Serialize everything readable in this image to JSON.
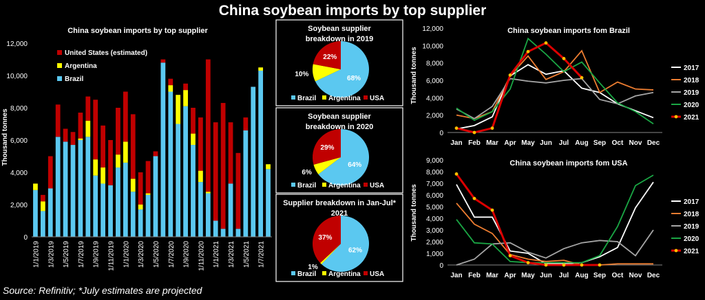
{
  "title": "China soybean imports by top supplier",
  "source": "Source: Refinitiv; *July estimates are projected",
  "colors": {
    "brazil": "#5bc8f0",
    "argentina": "#ffff00",
    "usa": "#c00000",
    "panel": "#ffffff"
  },
  "chart_data": [
    {
      "type": "bar",
      "stacked": true,
      "title": "China soybean imports by top supplier",
      "ylabel": "Thousand tonnes",
      "ylim": [
        0,
        12000
      ],
      "yticks": [
        0,
        2000,
        4000,
        6000,
        8000,
        10000,
        12000
      ],
      "ytick_labels": [
        "0",
        "2,000",
        "4,000",
        "6,000",
        "8,000",
        "10,000",
        "12,000"
      ],
      "xtick_labels": [
        "1/1/2019",
        "1/3/2019",
        "1/5/2019",
        "1/7/2019",
        "1/9/2019",
        "1/11/2019",
        "1/1/2020",
        "1/3/2020",
        "1/5/2020",
        "1/7/2020",
        "1/9/2020",
        "1/11/2020",
        "1/1/2021",
        "1/3/2021",
        "1/5/2021",
        "1/7/2021"
      ],
      "legend": [
        "United States (estimated)",
        "Argentina",
        "Brazil"
      ],
      "legend_position": "top-left",
      "series": [
        {
          "name": "Brazil",
          "color": "#5bc8f0",
          "values": [
            2900,
            1600,
            3000,
            6200,
            5900,
            5700,
            6000,
            6200,
            3800,
            3300,
            3200,
            4300,
            4600,
            2800,
            1700,
            2600,
            5000,
            10800,
            9000,
            7000,
            8100,
            5700,
            3400,
            2700,
            1000,
            500,
            3300,
            500,
            6600,
            9300,
            10300,
            4200
          ]
        },
        {
          "name": "Argentina",
          "color": "#ffff00",
          "values": [
            400,
            600,
            0,
            0,
            0,
            0,
            100,
            1000,
            1000,
            1000,
            0,
            800,
            1300,
            800,
            300,
            100,
            0,
            0,
            400,
            1800,
            1000,
            700,
            700,
            100,
            0,
            0,
            0,
            0,
            0,
            0,
            200,
            300
          ]
        },
        {
          "name": "United States (estimated)",
          "color": "#c00000",
          "values": [
            0,
            400,
            2000,
            2000,
            800,
            800,
            1600,
            1500,
            3700,
            2600,
            2800,
            2900,
            3100,
            4000,
            2000,
            2000,
            300,
            200,
            400,
            0,
            400,
            1600,
            3300,
            8200,
            6100,
            7800,
            3800,
            4700,
            800,
            0,
            0,
            0
          ]
        }
      ]
    },
    {
      "type": "pie",
      "title": "Soybean supplier breakdown in 2019",
      "labels": [
        "Brazil",
        "Argentina",
        "USA"
      ],
      "values": [
        68,
        10,
        22
      ],
      "value_labels": [
        "68%",
        "10%",
        "22%"
      ],
      "legend": [
        "Brazil",
        "Argentina",
        "USA"
      ]
    },
    {
      "type": "pie",
      "title": "Soybean supplier breakdown in 2020",
      "labels": [
        "Brazil",
        "Argentina",
        "USA"
      ],
      "values": [
        64,
        6,
        29
      ],
      "value_labels": [
        "64%",
        "6%",
        "29%"
      ],
      "legend": [
        "Brazil",
        "Argentina",
        "USA"
      ]
    },
    {
      "type": "pie",
      "title": "Supplier breakdown in Jan-Jul* 2021",
      "labels": [
        "Brazil",
        "Argentina",
        "USA"
      ],
      "values": [
        62,
        1,
        37
      ],
      "value_labels": [
        "62%",
        "1%",
        "37%"
      ],
      "legend": [
        "Brazil",
        "Argentina",
        "USA"
      ]
    },
    {
      "type": "line",
      "title": "China soybean imports fom Brazil",
      "ylabel": "Thousand tonnes",
      "ylim": [
        0,
        12000
      ],
      "yticks": [
        0,
        2000,
        4000,
        6000,
        8000,
        10000,
        12000
      ],
      "ytick_labels": [
        "0",
        "2,000",
        "4,000",
        "6,000",
        "8,000",
        "10,000",
        "12,000"
      ],
      "categories": [
        "Jan",
        "Feb",
        "Mar",
        "Apr",
        "May",
        "Jun",
        "Jul",
        "Aug",
        "Sep",
        "Oct",
        "Nov",
        "Dec"
      ],
      "series": [
        {
          "name": "2017",
          "color": "#ffffff",
          "values": [
            400,
            800,
            1800,
            6500,
            7800,
            6700,
            7100,
            5100,
            4600,
            3300,
            2500,
            1700
          ]
        },
        {
          "name": "2018",
          "color": "#ed7d31",
          "values": [
            2000,
            1600,
            2400,
            6500,
            8800,
            6100,
            7000,
            9400,
            4600,
            5800,
            5000,
            4900
          ]
        },
        {
          "name": "2019",
          "color": "#a6a6a6",
          "values": [
            2700,
            1600,
            3000,
            6200,
            5900,
            5700,
            6000,
            6200,
            3800,
            3300,
            4200,
            4600
          ]
        },
        {
          "name": "2020",
          "color": "#1aa644",
          "values": [
            2800,
            1400,
            2400,
            5000,
            10800,
            9000,
            7000,
            8100,
            5700,
            3400,
            2400,
            1000
          ]
        },
        {
          "name": "2021",
          "color": "#dc0000",
          "marker_color": "#ffc000",
          "values": [
            500,
            0,
            500,
            6600,
            9300,
            10300,
            8500,
            6300,
            null,
            null,
            null,
            null
          ]
        }
      ]
    },
    {
      "type": "line",
      "title": "China soybean imports fom USA",
      "ylabel": "Thousand tonnes",
      "ylim": [
        0,
        9000
      ],
      "yticks": [
        0,
        1000,
        2000,
        3000,
        4000,
        5000,
        6000,
        7000,
        8000,
        9000
      ],
      "ytick_labels": [
        "0",
        "1,000",
        "2,000",
        "3,000",
        "4,000",
        "5,000",
        "6,000",
        "7,000",
        "8,000",
        "9,000"
      ],
      "categories": [
        "Jan",
        "Feb",
        "Mar",
        "Apr",
        "May",
        "Jun",
        "Jul",
        "Aug",
        "Sep",
        "Oct",
        "Nov",
        "Dec"
      ],
      "series": [
        {
          "name": "2017",
          "color": "#ffffff",
          "values": [
            6900,
            4100,
            4100,
            1200,
            1000,
            100,
            100,
            200,
            700,
            1500,
            4900,
            7100
          ]
        },
        {
          "name": "2018",
          "color": "#ed7d31",
          "values": [
            5300,
            3500,
            2700,
            900,
            500,
            300,
            400,
            0,
            0,
            100,
            100,
            100
          ]
        },
        {
          "name": "2019",
          "color": "#a6a6a6",
          "values": [
            0,
            500,
            1800,
            1900,
            1100,
            600,
            1400,
            1900,
            2100,
            2000,
            800,
            3000
          ]
        },
        {
          "name": "2020",
          "color": "#1aa644",
          "values": [
            3900,
            1900,
            1800,
            300,
            200,
            200,
            200,
            200,
            800,
            3300,
            6800,
            7700
          ]
        },
        {
          "name": "2021",
          "color": "#dc0000",
          "marker_color": "#ffc000",
          "values": [
            7800,
            5700,
            4700,
            800,
            200,
            0,
            0,
            0,
            0,
            null,
            null,
            null
          ]
        }
      ]
    }
  ]
}
